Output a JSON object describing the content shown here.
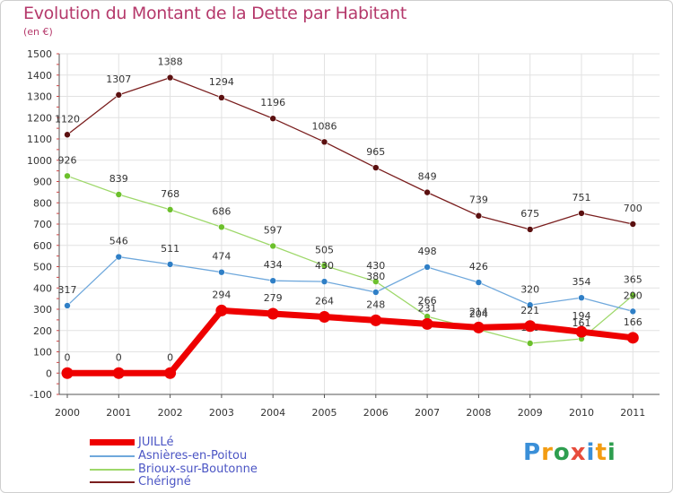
{
  "title": "Evolution du Montant de la Dette par Habitant",
  "subtitle": "(en €)",
  "logo": {
    "text": "Proxiti",
    "colors": [
      "#3a8fd8",
      "#f39c12",
      "#2e9e4f",
      "#e74c3c",
      "#3a8fd8",
      "#f39c12",
      "#2e9e4f"
    ]
  },
  "chart_data": {
    "type": "line",
    "x": [
      "2000",
      "2001",
      "2002",
      "2003",
      "2004",
      "2005",
      "2006",
      "2007",
      "2008",
      "2009",
      "2010",
      "2011"
    ],
    "ylim": [
      -100,
      1500
    ],
    "yticks": [
      "-100",
      "0",
      "100",
      "200",
      "300",
      "400",
      "500",
      "600",
      "700",
      "800",
      "900",
      "1000",
      "1100",
      "1200",
      "1300",
      "1400",
      "1500"
    ],
    "grid": true,
    "legend_position": "bottom-left",
    "series": [
      {
        "name": "Chérigné",
        "color": "#7a1e1e",
        "marker": "#5b1010",
        "width": 1.3,
        "values": [
          1120,
          1307,
          1388,
          1294,
          1196,
          1086,
          965,
          849,
          739,
          675,
          751,
          700
        ],
        "labels": [
          "1120",
          "1307",
          "1388",
          "1294",
          "1196",
          "1086",
          "965",
          "849",
          "739",
          "675",
          "751",
          "700"
        ]
      },
      {
        "name": "Brioux-sur-Boutonne",
        "color": "#9ed86a",
        "marker": "#6cc02c",
        "width": 1.3,
        "values": [
          926,
          839,
          768,
          686,
          597,
          505,
          430,
          266,
          204,
          140,
          161,
          365
        ],
        "labels": [
          "926",
          "839",
          "768",
          "686",
          "597",
          "505",
          "430",
          "266",
          "204",
          "140",
          "161",
          "365"
        ]
      },
      {
        "name": "Asnières-en-Poitou",
        "color": "#6fa8dc",
        "marker": "#2f7fc6",
        "width": 1.3,
        "values": [
          317,
          546,
          511,
          474,
          434,
          430,
          380,
          498,
          426,
          320,
          354,
          290
        ],
        "labels": [
          "317",
          "546",
          "511",
          "474",
          "434",
          "430",
          "380",
          "498",
          "426",
          "320",
          "354",
          "290"
        ]
      },
      {
        "name": "JUILLé",
        "color": "#ee0000",
        "marker": "#ee0000",
        "width": 7,
        "values": [
          0,
          0,
          0,
          294,
          279,
          264,
          248,
          231,
          214,
          221,
          194,
          166
        ],
        "labels": [
          "0",
          "0",
          "0",
          "294",
          "279",
          "264",
          "248",
          "231",
          "214",
          "221",
          "194",
          "166"
        ]
      }
    ],
    "legend": [
      "JUILLé",
      "Asnières-en-Poitou",
      "Brioux-sur-Boutonne",
      "Chérigné"
    ]
  }
}
